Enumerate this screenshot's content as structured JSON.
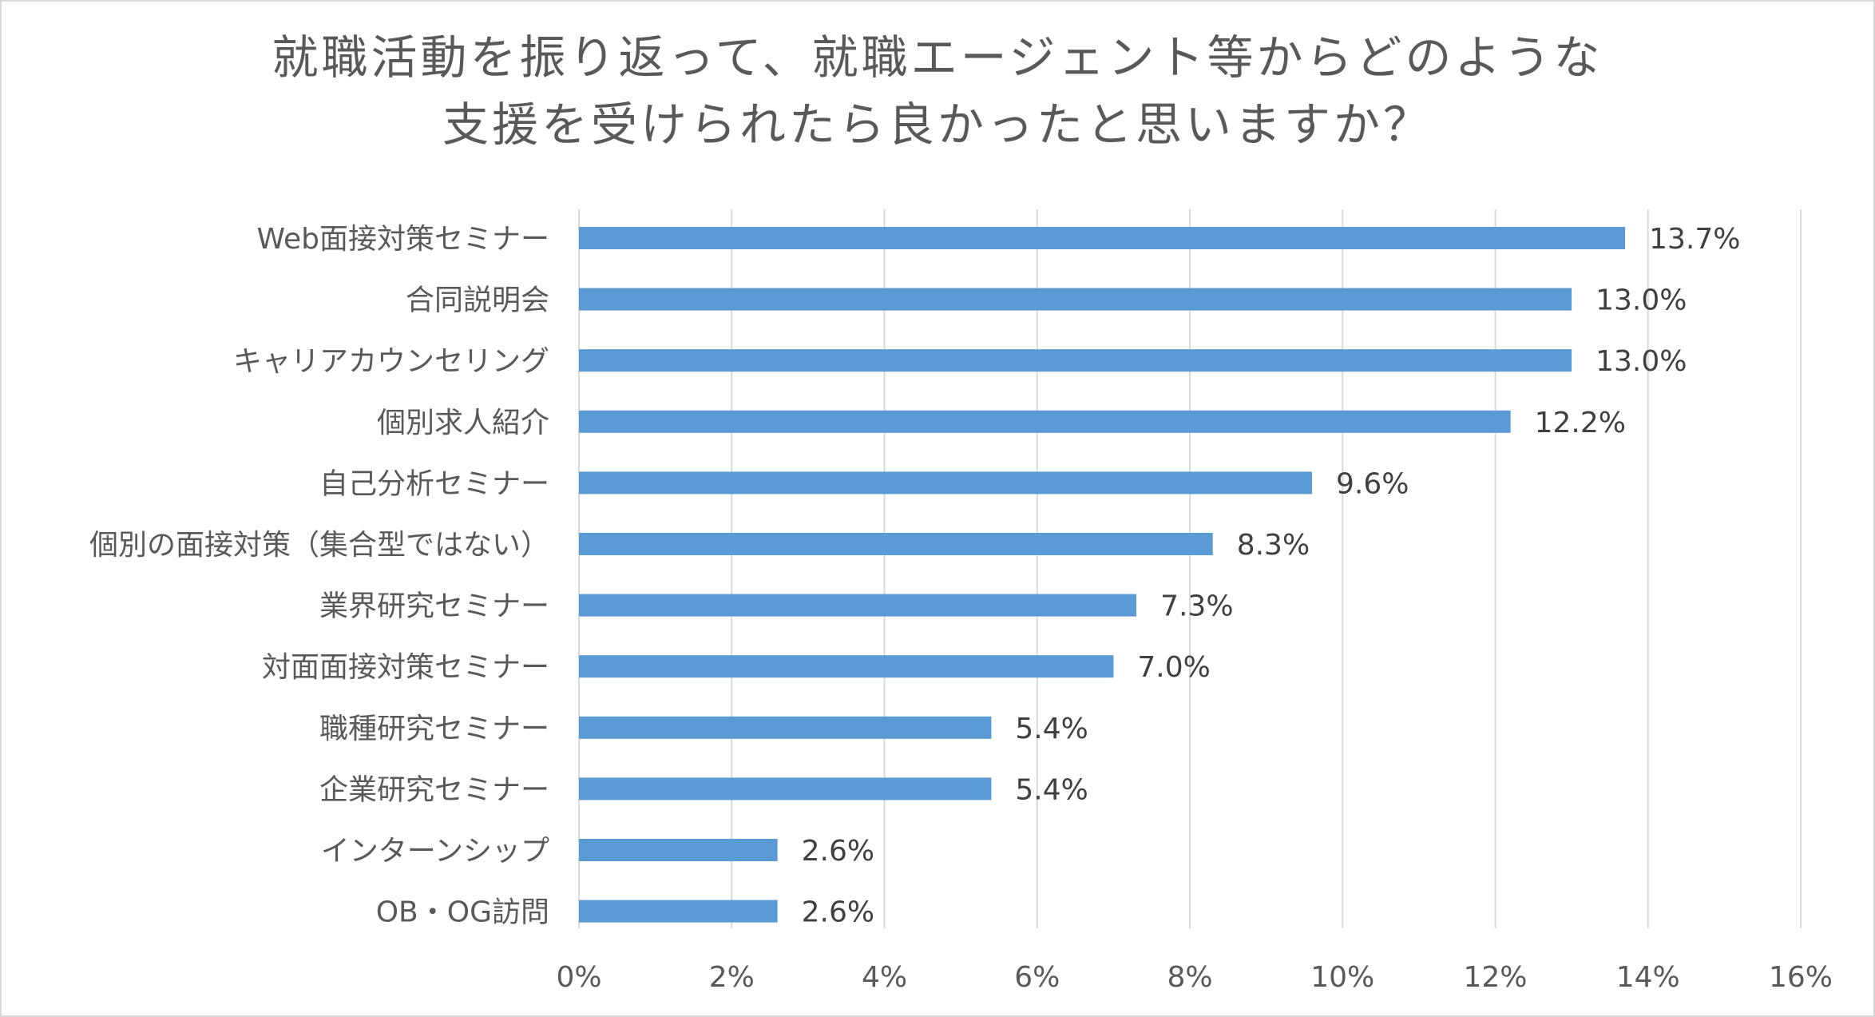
{
  "chart_data": {
    "type": "bar",
    "orientation": "horizontal",
    "title_lines": [
      "就職活動を振り返って、就職エージェント等からどのような",
      "支援を受けられたら良かったと思いますか？"
    ],
    "categories": [
      "Web面接対策セミナー",
      "合同説明会",
      "キャリアカウンセリング",
      "個別求人紹介",
      "自己分析セミナー",
      "個別の面接対策（集合型ではない）",
      "業界研究セミナー",
      "対面面接対策セミナー",
      "職種研究セミナー",
      "企業研究セミナー",
      "インターンシップ",
      "OB・OG訪問"
    ],
    "values": [
      13.7,
      13.0,
      13.0,
      12.2,
      9.6,
      8.3,
      7.3,
      7.0,
      5.4,
      5.4,
      2.6,
      2.6
    ],
    "value_labels": [
      "13.7%",
      "13.0%",
      "13.0%",
      "12.2%",
      "9.6%",
      "8.3%",
      "7.3%",
      "7.0%",
      "5.4%",
      "5.4%",
      "2.6%",
      "2.6%"
    ],
    "x_ticks": [
      0,
      2,
      4,
      6,
      8,
      10,
      12,
      14,
      16
    ],
    "x_tick_labels": [
      "0%",
      "2%",
      "4%",
      "6%",
      "8%",
      "10%",
      "12%",
      "14%",
      "16%"
    ],
    "xlim": [
      0,
      16
    ],
    "grid": "vertical",
    "legend": "none",
    "bar_color": "#5b9bd5",
    "grid_color": "#d9d9d9"
  }
}
